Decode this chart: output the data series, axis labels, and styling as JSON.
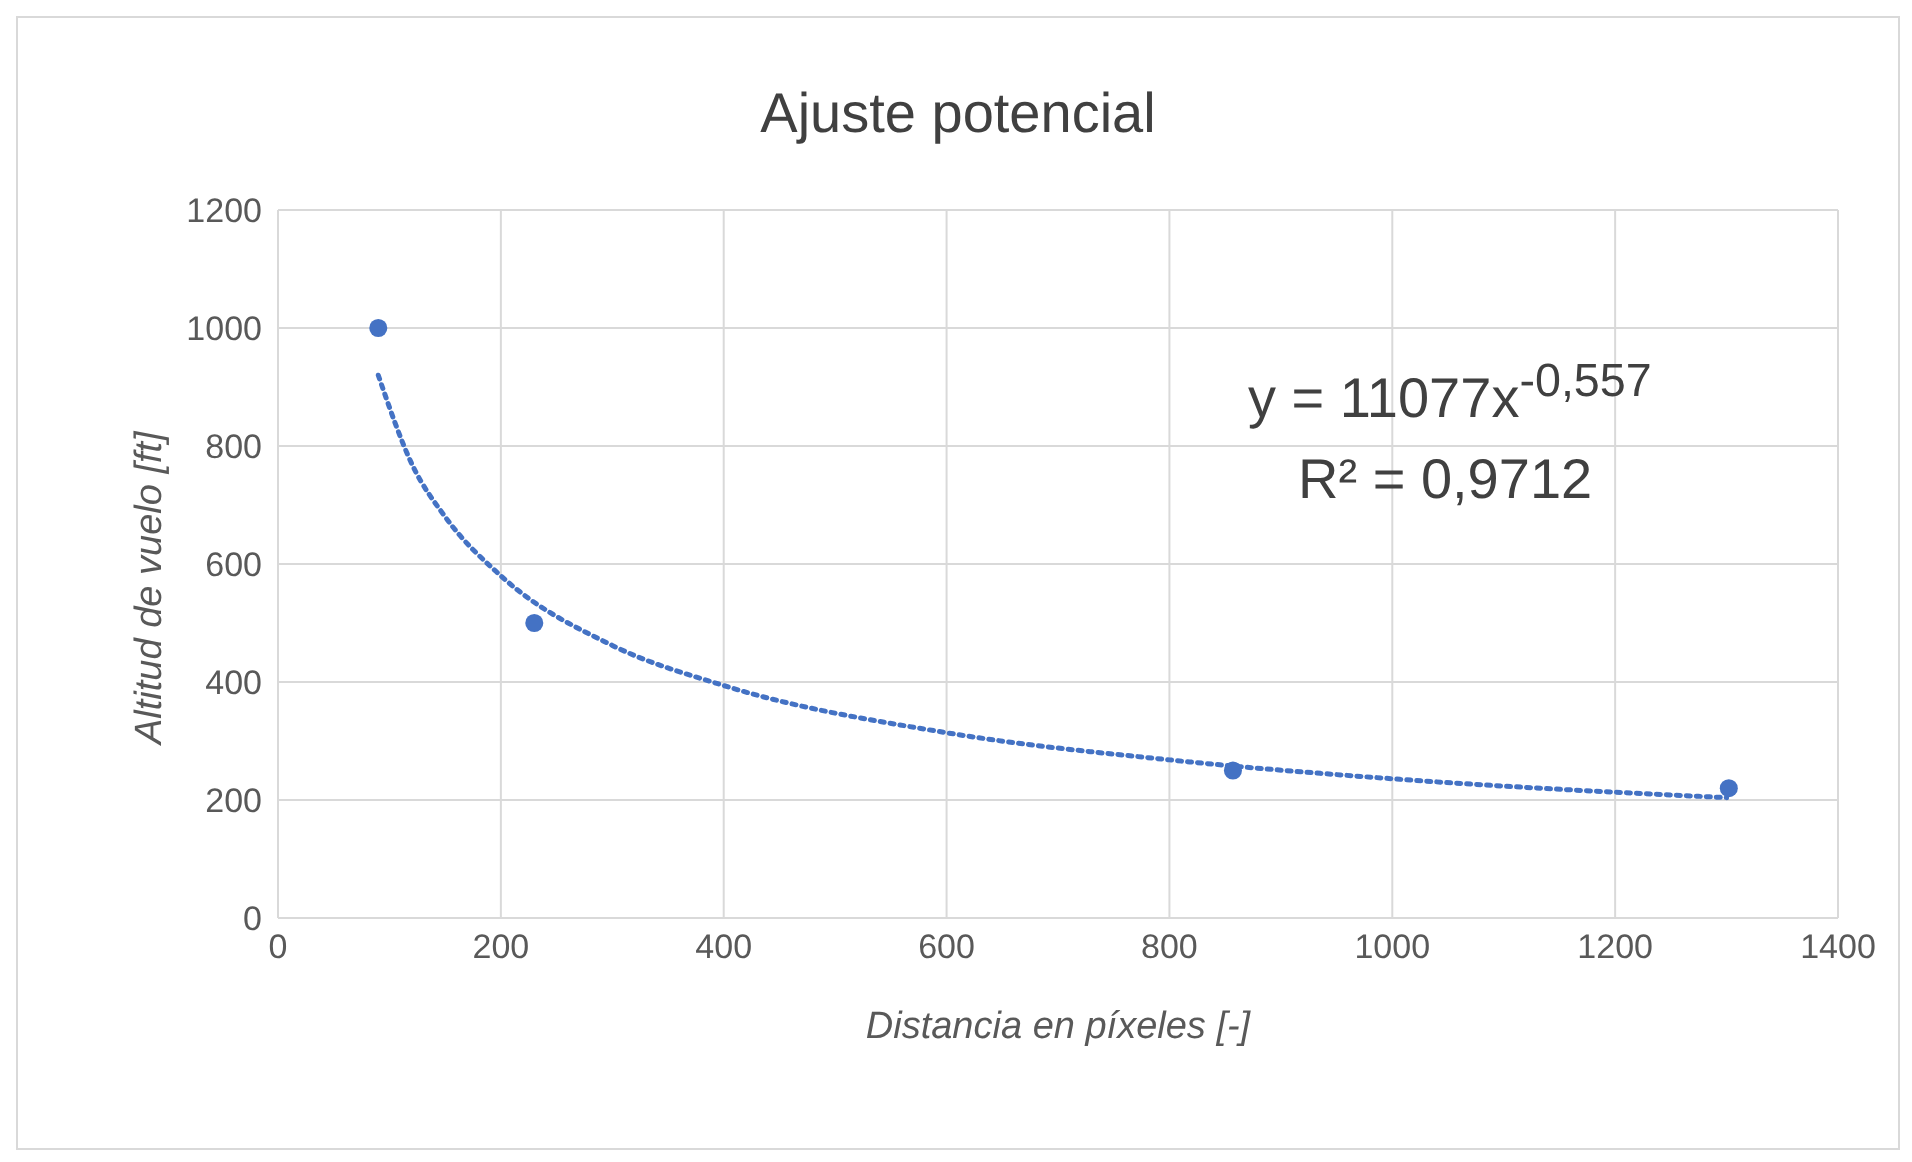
{
  "chart_data": {
    "title": "Ajuste potencial",
    "xlabel": "Distancia en píxeles [-]",
    "ylabel": "Altitud de vuelo [ft]",
    "xlim": [
      0,
      1400
    ],
    "xticks": [
      0,
      200,
      400,
      600,
      800,
      1000,
      1200,
      1400
    ],
    "ylim": [
      0,
      1200
    ],
    "yticks": [
      0,
      200,
      400,
      600,
      800,
      1000,
      1200
    ],
    "grid": true,
    "type": "scatter",
    "marker": "circle",
    "series": [
      {
        "color": "#4472c4",
        "x": [
          90,
          230,
          857,
          1302
        ],
        "values": [
          1000,
          500,
          250,
          220
        ]
      },
      {
        "type": "line",
        "color": "#4472c4",
        "line_style": "dotted",
        "marker": "none",
        "x": [
          90,
          120,
          150,
          200,
          300,
          400,
          600,
          800,
          1000,
          1300
        ],
        "values": [
          920,
          770,
          680,
          580,
          462,
          394,
          314,
          268,
          236,
          204
        ]
      }
    ],
    "annotations": [
      "y = 11077x$^{-0,557}$",
      "R² = 0,9712"
    ]
  }
}
